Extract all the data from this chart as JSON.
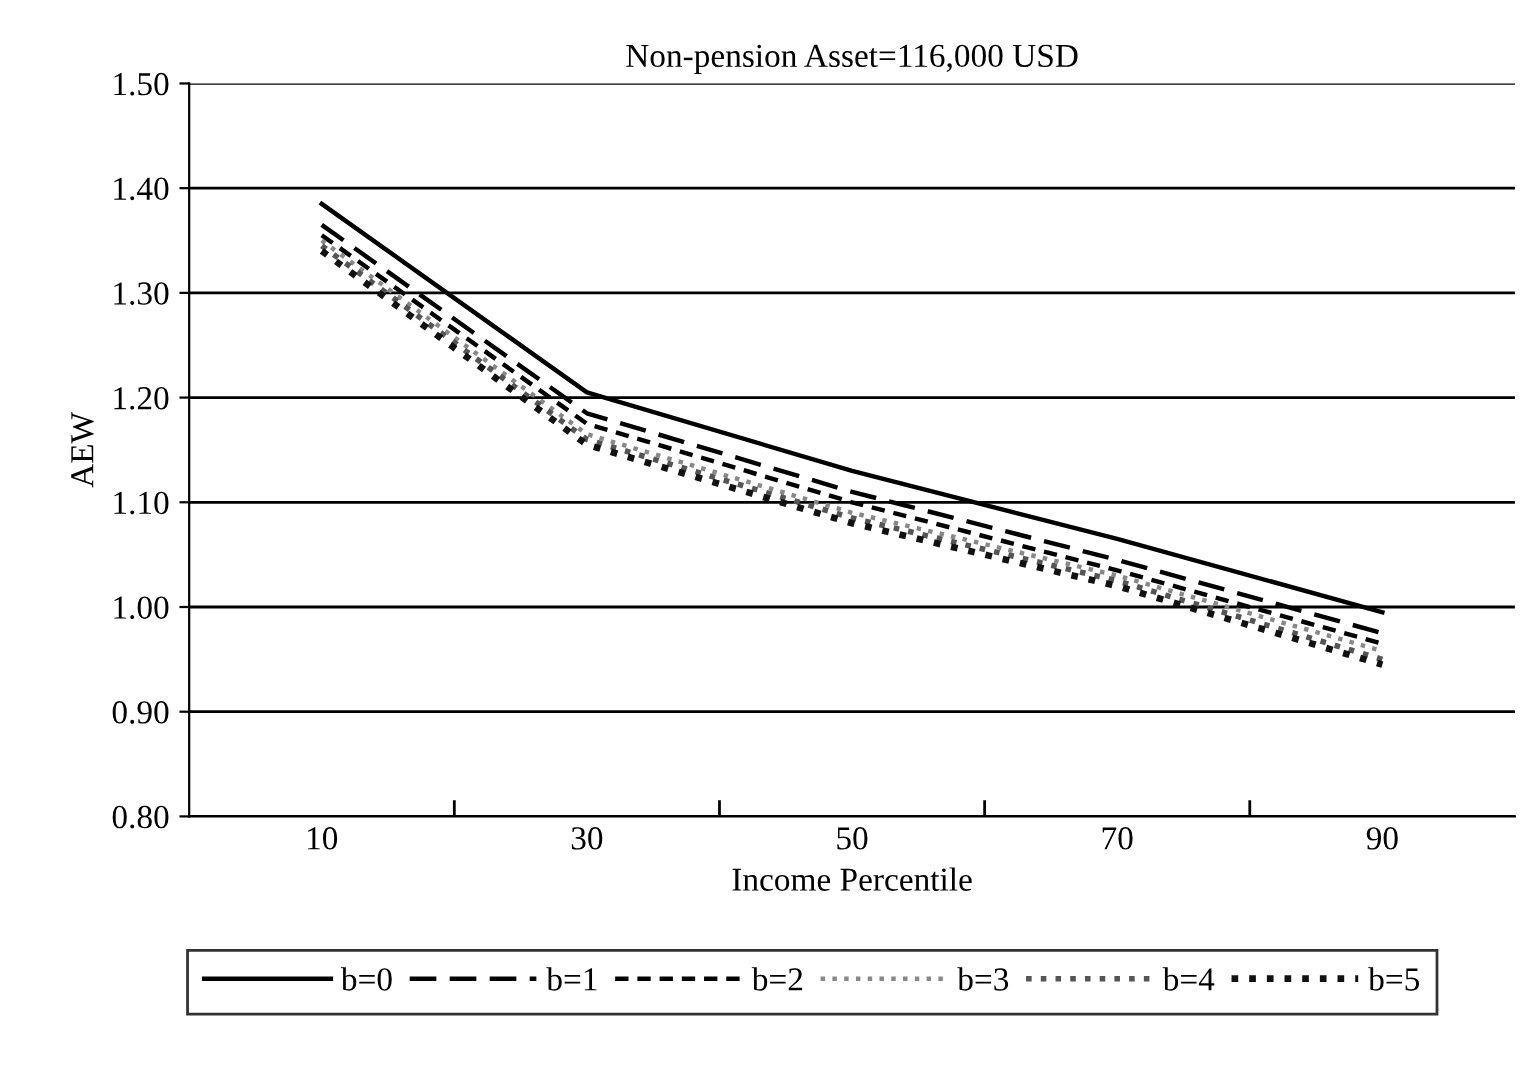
{
  "chart_data": {
    "type": "line",
    "title": "Non-pension Asset=116,000 USD",
    "xlabel": "Income Percentile",
    "ylabel": "AEW",
    "categories": [
      "10",
      "30",
      "50",
      "70",
      "90"
    ],
    "series": [
      {
        "name": "b=0",
        "color": "#000000",
        "line_style": "solid",
        "values": [
          1.385,
          1.205,
          1.13,
          1.065,
          0.995
        ]
      },
      {
        "name": "b=1",
        "color": "#000000",
        "line_style": "dashed",
        "values": [
          1.365,
          1.185,
          1.11,
          1.045,
          0.975
        ]
      },
      {
        "name": "b=2",
        "color": "#000000",
        "line_style": "dashed",
        "values": [
          1.355,
          1.175,
          1.1,
          1.035,
          0.965
        ]
      },
      {
        "name": "b=3",
        "color": "#888888",
        "line_style": "dotted",
        "values": [
          1.35,
          1.165,
          1.09,
          1.03,
          0.958
        ]
      },
      {
        "name": "b=4",
        "color": "#555555",
        "line_style": "dotted",
        "values": [
          1.345,
          1.16,
          1.085,
          1.025,
          0.95
        ]
      },
      {
        "name": "b=5",
        "color": "#111111",
        "line_style": "dotted",
        "values": [
          1.34,
          1.155,
          1.08,
          1.02,
          0.945
        ]
      }
    ],
    "ylim": [
      0.8,
      1.5
    ],
    "yticks": [
      {
        "value": 0.8,
        "label": "0.80"
      },
      {
        "value": 0.9,
        "label": "0.90"
      },
      {
        "value": 1.0,
        "label": "1.00"
      },
      {
        "value": 1.1,
        "label": "1.10"
      },
      {
        "value": 1.2,
        "label": "1.20"
      },
      {
        "value": 1.3,
        "label": "1.30"
      },
      {
        "value": 1.4,
        "label": "1.40"
      },
      {
        "value": 1.5,
        "label": "1.50"
      }
    ],
    "grid": "y",
    "legend": "bottom",
    "marker": "none"
  }
}
